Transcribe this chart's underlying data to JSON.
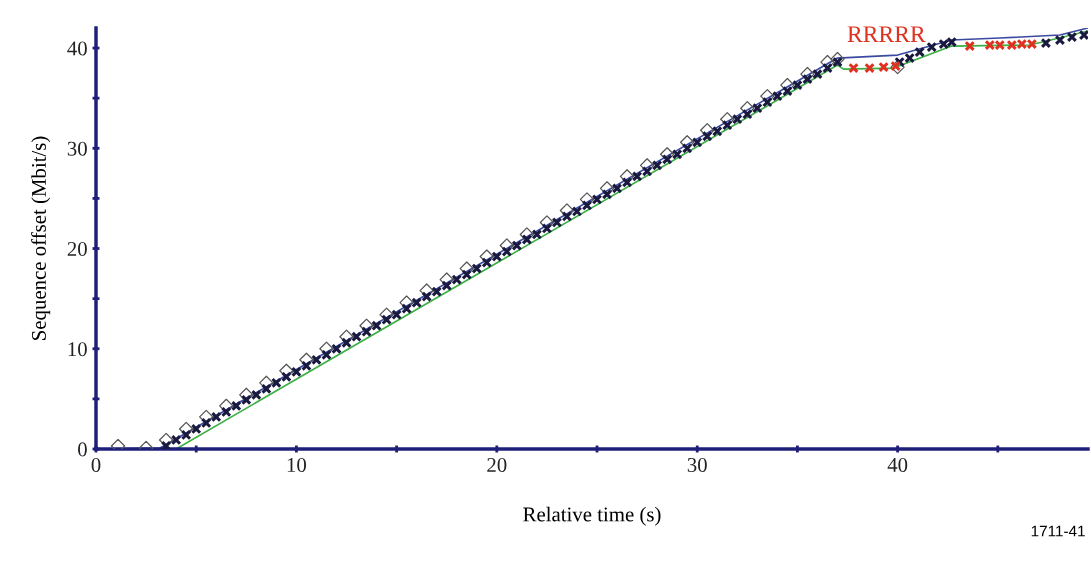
{
  "chart_data": {
    "type": "scatter",
    "xlabel": "Relative time (s)",
    "ylabel": "Sequence offset (Mbit/s)",
    "xlim": [
      0,
      49.5
    ],
    "ylim": [
      0,
      42
    ],
    "xticks": [
      0,
      {
        "value": 5,
        "label": null
      },
      10,
      {
        "value": 15,
        "label": null
      },
      20,
      {
        "value": 25,
        "label": null
      },
      30,
      {
        "value": 35,
        "label": null
      },
      40,
      {
        "value": 45,
        "label": null
      }
    ],
    "yticks": [
      0,
      {
        "value": 5,
        "label": null
      },
      10,
      {
        "value": 15,
        "label": null
      },
      20,
      {
        "value": 25,
        "label": null
      },
      30,
      {
        "value": 35,
        "label": null
      },
      40
    ],
    "grid": false,
    "series": [
      {
        "type": "line",
        "color": "#3cb043",
        "marker": "none",
        "x": [
          0,
          4.0,
          37.0,
          37.3,
          39.8,
          42.7,
          46.6,
          49.5
        ],
        "values": [
          0,
          0,
          38.3,
          37.9,
          38.0,
          40.2,
          40.3,
          41.7
        ]
      },
      {
        "type": "line",
        "color": "#3a4aa0",
        "marker": "none",
        "x": [
          0,
          3.2,
          37.0,
          40.0,
          42.7,
          45.1,
          48.1,
          49.5
        ],
        "values": [
          0,
          0.1,
          39.0,
          39.3,
          40.8,
          41.0,
          41.3,
          42.0
        ]
      },
      {
        "color": "#555555",
        "marker": "diamond",
        "x": [
          1.1,
          2.5,
          3.5,
          4.5,
          5.5,
          6.5,
          7.5,
          8.5,
          9.5,
          10.5,
          11.5,
          12.5,
          13.5,
          14.5,
          15.5,
          16.5,
          17.5,
          18.5,
          19.5,
          20.5,
          21.5,
          22.5,
          23.5,
          24.5,
          25.5,
          26.5,
          27.5,
          28.5,
          29.5,
          30.5,
          31.5,
          32.5,
          33.5,
          34.5,
          35.5,
          36.5,
          37.0,
          40.0
        ],
        "values": [
          0.3,
          0.1,
          0.9,
          2.0,
          3.2,
          4.3,
          5.4,
          6.6,
          7.8,
          8.9,
          10.0,
          11.2,
          12.3,
          13.4,
          14.6,
          15.8,
          16.9,
          18.0,
          19.2,
          20.3,
          21.4,
          22.6,
          23.8,
          24.9,
          26.0,
          27.2,
          28.3,
          29.4,
          30.6,
          31.8,
          32.9,
          34.0,
          35.2,
          36.3,
          37.4,
          38.6,
          38.9,
          38.1
        ]
      },
      {
        "color": "#1a1a40",
        "marker": "cross",
        "x": [
          3.5,
          4.0,
          4.5,
          5.0,
          5.5,
          6.0,
          6.5,
          7.0,
          7.5,
          8.0,
          8.5,
          9.0,
          9.5,
          10.0,
          10.5,
          11.0,
          11.5,
          12.0,
          12.5,
          13.0,
          13.5,
          14.0,
          14.5,
          15.0,
          15.5,
          16.0,
          16.5,
          17.0,
          17.5,
          18.0,
          18.5,
          19.0,
          19.5,
          20.0,
          20.5,
          21.0,
          21.5,
          22.0,
          22.5,
          23.0,
          23.5,
          24.0,
          24.5,
          25.0,
          25.5,
          26.0,
          26.5,
          27.0,
          27.5,
          28.0,
          28.5,
          29.0,
          29.5,
          30.0,
          30.5,
          31.0,
          31.5,
          32.0,
          32.5,
          33.0,
          33.5,
          34.0,
          34.5,
          35.0,
          35.5,
          36.0,
          36.5,
          37.0,
          40.1,
          40.6,
          41.1,
          41.7,
          42.3,
          42.7,
          47.4,
          48.1,
          48.7,
          49.3
        ],
        "values": [
          0.3,
          0.9,
          1.4,
          2.0,
          2.6,
          3.2,
          3.7,
          4.3,
          4.9,
          5.4,
          6.0,
          6.6,
          7.2,
          7.7,
          8.3,
          8.9,
          9.4,
          10.0,
          10.6,
          11.2,
          11.7,
          12.3,
          12.9,
          13.4,
          14.0,
          14.6,
          15.2,
          15.7,
          16.3,
          16.9,
          17.4,
          18.0,
          18.6,
          19.2,
          19.7,
          20.3,
          20.9,
          21.4,
          22.0,
          22.6,
          23.2,
          23.7,
          24.3,
          24.9,
          25.4,
          26.0,
          26.6,
          27.2,
          27.7,
          28.3,
          28.9,
          29.4,
          30.0,
          30.6,
          31.2,
          31.7,
          32.3,
          32.9,
          33.4,
          34.0,
          34.6,
          35.2,
          35.7,
          36.3,
          36.9,
          37.4,
          38.0,
          38.6,
          38.6,
          39.0,
          39.6,
          40.1,
          40.4,
          40.6,
          40.5,
          40.8,
          41.1,
          41.3
        ]
      },
      {
        "color": "#e03020",
        "marker": "cross",
        "x": [
          37.8,
          38.6,
          39.3,
          39.9,
          43.6,
          44.6,
          45.1,
          45.7,
          46.2,
          46.7
        ],
        "values": [
          38.0,
          38.0,
          38.1,
          38.2,
          40.2,
          40.3,
          40.3,
          40.3,
          40.4,
          40.4
        ]
      }
    ],
    "annotations": [
      "RRRRR",
      "1711-41"
    ]
  }
}
